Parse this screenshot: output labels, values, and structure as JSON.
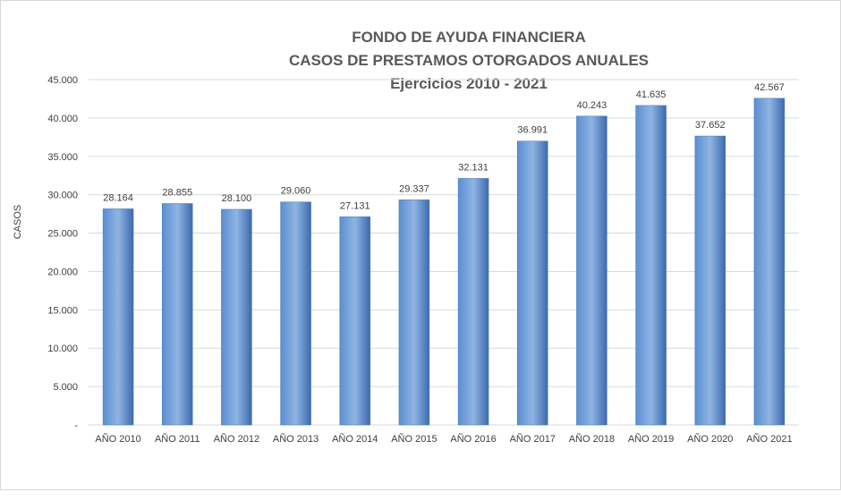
{
  "chart_data": {
    "type": "bar",
    "title_lines": [
      "FONDO DE AYUDA FINANCIERA",
      "CASOS DE PRESTAMOS OTORGADOS ANUALES",
      "Ejercicios 2010 - 2021"
    ],
    "ylabel": "CASOS",
    "xlabel": "",
    "categories": [
      "AÑO 2010",
      "AÑO 2011",
      "AÑO 2012",
      "AÑO 2013",
      "AÑO 2014",
      "AÑO 2015",
      "AÑO 2016",
      "AÑO 2017",
      "AÑO 2018",
      "AÑO 2019",
      "AÑO 2020",
      "AÑO 2021"
    ],
    "values": [
      28164,
      28855,
      28100,
      29060,
      27131,
      29337,
      32131,
      36991,
      40243,
      41635,
      37652,
      42567
    ],
    "value_labels": [
      "28.164",
      "28.855",
      "28.100",
      "29.060",
      "27.131",
      "29.337",
      "32.131",
      "36.991",
      "40.243",
      "41.635",
      "37.652",
      "42.567"
    ],
    "ylim": [
      0,
      45000
    ],
    "yticks": [
      0,
      5000,
      10000,
      15000,
      20000,
      25000,
      30000,
      35000,
      40000,
      45000
    ],
    "ytick_labels": [
      "-",
      "5.000",
      "10.000",
      "15.000",
      "20.000",
      "25.000",
      "30.000",
      "35.000",
      "40.000",
      "45.000"
    ],
    "grid": true,
    "legend": "none",
    "colors": {
      "bar_light": "#8fb4e3",
      "bar_mid": "#5b8ed0",
      "bar_dark": "#3d6aad",
      "grid": "#d9d9d9",
      "title": "#595959"
    }
  }
}
